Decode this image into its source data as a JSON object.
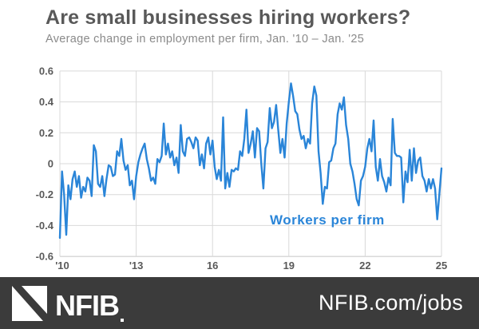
{
  "header": {
    "title": "Are small businesses hiring workers?",
    "subtitle": "Average change in employment per firm, Jan. '10 – Jan. '25"
  },
  "chart_data": {
    "type": "line",
    "title": "Are small businesses hiring workers?",
    "subtitle": "Average change in employment per firm, Jan. '10 – Jan. '25",
    "series_label": "Workers per firm",
    "x_unit": "month",
    "x_start": "Jan 2010",
    "x_end": "Jan 2025",
    "ylim": [
      -0.6,
      0.6
    ],
    "grid": true,
    "legend_position": "inside-bottom-right-as-text-label",
    "line_color": "#2a85d8",
    "grid_color": "#d9d9d9",
    "axis_line_color": "#c4c4c4",
    "tick_label_color": "#595959",
    "y_ticks": [
      {
        "value": 0.6,
        "label": "0.6"
      },
      {
        "value": 0.4,
        "label": "0.4"
      },
      {
        "value": 0.2,
        "label": "0.2"
      },
      {
        "value": 0,
        "label": "0"
      },
      {
        "value": -0.2,
        "label": "-0.2"
      },
      {
        "value": -0.4,
        "label": "-0.4"
      },
      {
        "value": -0.6,
        "label": "-0.6"
      }
    ],
    "x_ticks": [
      {
        "month_index": 0,
        "label": "'10"
      },
      {
        "month_index": 36,
        "label": "'13"
      },
      {
        "month_index": 72,
        "label": "16"
      },
      {
        "month_index": 108,
        "label": "19"
      },
      {
        "month_index": 144,
        "label": "22"
      },
      {
        "month_index": 180,
        "label": "25"
      }
    ],
    "values": [
      -0.48,
      -0.05,
      -0.2,
      -0.46,
      -0.14,
      -0.23,
      -0.1,
      -0.05,
      -0.15,
      -0.08,
      -0.22,
      -0.15,
      -0.18,
      -0.09,
      -0.11,
      -0.21,
      0.12,
      0.08,
      -0.13,
      -0.15,
      -0.08,
      -0.21,
      -0.1,
      -0.01,
      -0.02,
      -0.08,
      -0.07,
      0.08,
      0.05,
      0.16,
      0.02,
      -0.04,
      -0.01,
      -0.14,
      -0.11,
      -0.23,
      -0.08,
      0.01,
      0.06,
      0.1,
      0.13,
      0.03,
      -0.03,
      -0.11,
      -0.09,
      -0.13,
      0.03,
      0.01,
      0.05,
      0.26,
      0.06,
      0.13,
      0.04,
      0.08,
      -0.01,
      0.04,
      -0.06,
      0.25,
      0.08,
      0.05,
      0.16,
      0.17,
      0.14,
      0.1,
      0.17,
      0.15,
      -0.01,
      0.06,
      -0.03,
      0.13,
      0.17,
      0.06,
      0.15,
      -0.02,
      -0.1,
      -0.04,
      -0.11,
      0.3,
      -0.16,
      -0.06,
      -0.15,
      -0.04,
      -0.05,
      -0.03,
      -0.04,
      0.08,
      0.05,
      0.16,
      0.35,
      0.07,
      0.13,
      0.21,
      0.04,
      0.23,
      0.21,
      0.0,
      -0.16,
      0.1,
      0.14,
      0.36,
      0.23,
      0.27,
      0.38,
      0.22,
      0.07,
      0.16,
      0.04,
      0.26,
      0.4,
      0.52,
      0.44,
      0.34,
      0.32,
      0.22,
      0.16,
      0.18,
      0.1,
      0.16,
      0.13,
      0.39,
      0.5,
      0.44,
      0.08,
      -0.06,
      -0.26,
      -0.15,
      -0.16,
      0.01,
      0.02,
      0.1,
      0.13,
      0.32,
      0.39,
      0.35,
      0.43,
      0.25,
      0.16,
      0.0,
      -0.05,
      -0.13,
      -0.23,
      -0.27,
      -0.11,
      -0.08,
      -0.02,
      0.1,
      0.16,
      0.08,
      0.28,
      -0.02,
      -0.11,
      0.03,
      -0.08,
      -0.12,
      -0.18,
      -0.09,
      -0.14,
      0.29,
      0.07,
      0.05,
      0.05,
      0.04,
      -0.25,
      -0.05,
      -0.12,
      0.09,
      -0.11,
      0.1,
      -0.06,
      0.02,
      0.04,
      -0.08,
      -0.11,
      -0.18,
      -0.1,
      -0.16,
      -0.1,
      -0.16,
      -0.36,
      -0.2,
      -0.03
    ]
  },
  "footer": {
    "brand": "NFIB",
    "url": "NFIB.com/jobs",
    "bg_color": "#3b3b3b",
    "logo_color": "#ffffff"
  }
}
